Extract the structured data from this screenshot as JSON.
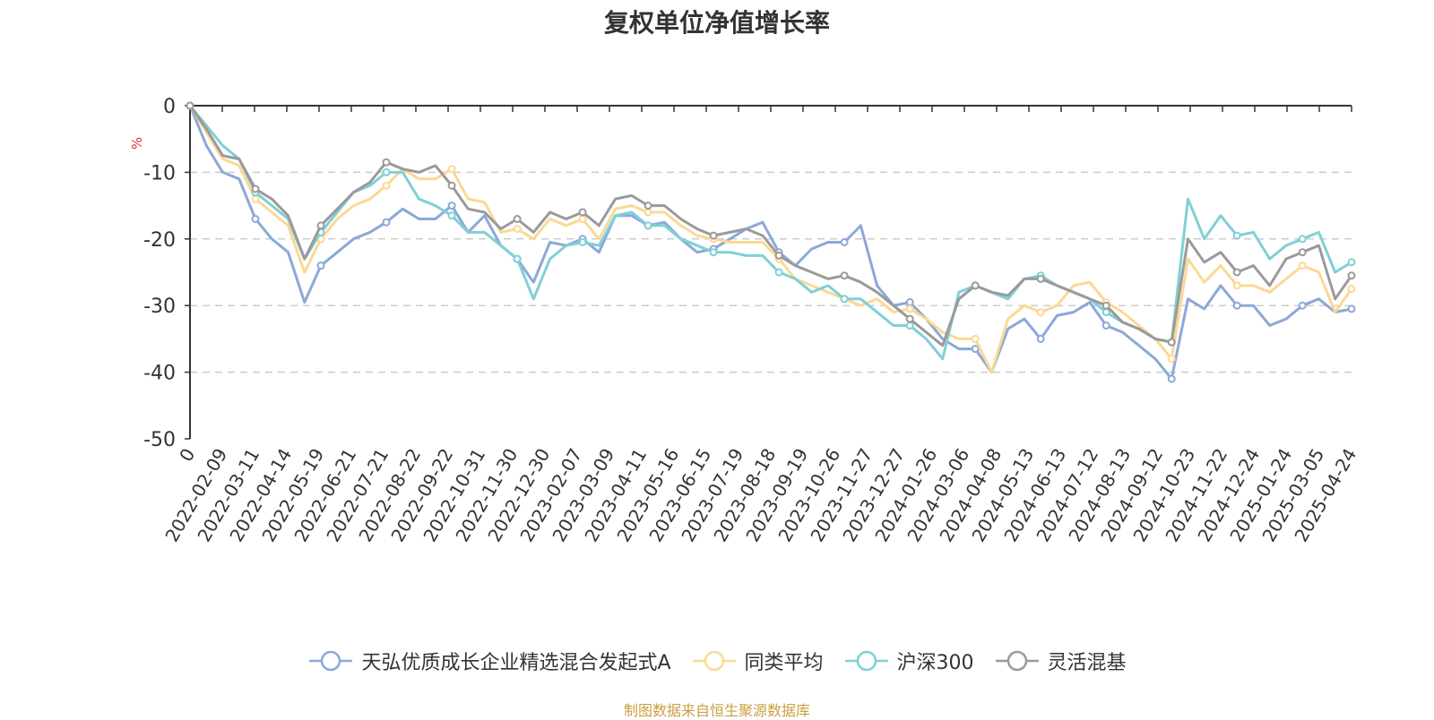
{
  "chart_data": {
    "type": "line",
    "title": "复权单位净值增长率",
    "ylabel": "%",
    "ylim": [
      -50,
      0
    ],
    "yticks": [
      "0",
      "-10",
      "-20",
      "-30",
      "-40",
      "-50"
    ],
    "grid": true,
    "legend_position": "bottom",
    "x_tick_labels": [
      "0",
      "2022-02-09",
      "2022-03-11",
      "2022-04-14",
      "2022-05-19",
      "2022-06-21",
      "2022-07-21",
      "2022-08-22",
      "2022-09-22",
      "2022-10-31",
      "2022-11-30",
      "2022-12-30",
      "2023-02-07",
      "2023-03-09",
      "2023-04-11",
      "2023-05-16",
      "2023-06-15",
      "2023-07-19",
      "2023-08-18",
      "2023-09-19",
      "2023-10-26",
      "2023-11-27",
      "2023-12-27",
      "2024-01-26",
      "2024-03-06",
      "2024-04-08",
      "2024-05-13",
      "2024-06-13",
      "2024-07-12",
      "2024-08-13",
      "2024-09-12",
      "2024-10-23",
      "2024-11-22",
      "2024-12-24",
      "2025-01-24",
      "2025-03-05",
      "2025-04-24"
    ],
    "series": [
      {
        "name": "天弘优质成长企业精选混合发起式A",
        "color": "#8ba8d8",
        "values": [
          0,
          -6,
          -10,
          -11,
          -17,
          -20,
          -22,
          -29.5,
          -24,
          -22,
          -20,
          -19,
          -17.5,
          -15.5,
          -17,
          -17,
          -15,
          -19,
          -16.5,
          -21,
          -23,
          -26.5,
          -20.5,
          -21,
          -20,
          -22,
          -16.5,
          -16.5,
          -18,
          -17.5,
          -20,
          -22,
          -21.5,
          -20,
          -18.5,
          -17.5,
          -22,
          -24,
          -21.5,
          -20.5,
          -20.5,
          -18,
          -27,
          -30,
          -29.5,
          -32,
          -35,
          -36.5,
          -36.5,
          -40,
          -33.5,
          -32,
          -35,
          -31.5,
          -31,
          -29.5,
          -33,
          -34,
          -36,
          -38,
          -41,
          -29,
          -30.5,
          -27,
          -30,
          -30,
          -33,
          -32,
          -30,
          -29,
          -31,
          -30.5
        ]
      },
      {
        "name": "同类平均",
        "color": "#fcd893",
        "values": [
          0,
          -4,
          -8,
          -9,
          -14,
          -16,
          -18,
          -25,
          -20,
          -17,
          -15,
          -14,
          -12,
          -9.5,
          -11,
          -11,
          -9.5,
          -14,
          -14.5,
          -19,
          -18.5,
          -20,
          -17,
          -18,
          -17,
          -20,
          -15.5,
          -15,
          -16,
          -16,
          -18,
          -19.5,
          -20,
          -20.5,
          -20.5,
          -20.5,
          -23,
          -26,
          -27,
          -28,
          -29,
          -30,
          -29,
          -31,
          -30.5,
          -32,
          -34,
          -35,
          -35,
          -40,
          -32,
          -30,
          -31,
          -30,
          -27,
          -26.5,
          -29.5,
          -31,
          -33,
          -35,
          -38,
          -23,
          -26.5,
          -24,
          -27,
          -27,
          -28,
          -26,
          -24,
          -25,
          -31,
          -27.5
        ]
      },
      {
        "name": "沪深300",
        "color": "#7fd0d6",
        "values": [
          0,
          -3,
          -6,
          -8,
          -13,
          -15,
          -17,
          -23,
          -19,
          -16,
          -13,
          -12,
          -10,
          -10,
          -14,
          -15,
          -16.5,
          -19,
          -19,
          -21,
          -23,
          -29,
          -23,
          -21,
          -20.5,
          -21,
          -16.5,
          -16,
          -18,
          -18,
          -20,
          -21,
          -22,
          -22,
          -22.5,
          -22.5,
          -25,
          -26,
          -28,
          -27,
          -29,
          -29,
          -31,
          -33,
          -33,
          -35,
          -38,
          -28,
          -27,
          -28,
          -29,
          -26,
          -25.5,
          -27,
          -28,
          -29,
          -31,
          -32.5,
          -33.5,
          -35,
          -35.5,
          -14,
          -20,
          -16.5,
          -19.5,
          -19,
          -23,
          -21,
          -20,
          -19,
          -25,
          -23.5
        ]
      },
      {
        "name": "灵活混基",
        "color": "#9a9a9a",
        "values": [
          0,
          -3.5,
          -7.5,
          -8,
          -12.5,
          -14,
          -16.5,
          -23,
          -18,
          -15.5,
          -13,
          -11.5,
          -8.5,
          -9.5,
          -10,
          -9,
          -12,
          -15.5,
          -16,
          -18.5,
          -17,
          -19,
          -16,
          -17,
          -16,
          -18,
          -14,
          -13.5,
          -15,
          -15,
          -17,
          -18.5,
          -19.5,
          -19,
          -18.5,
          -19.5,
          -22.5,
          -24,
          -25,
          -26,
          -25.5,
          -26.5,
          -28,
          -30,
          -32,
          -34,
          -36,
          -29,
          -27,
          -28,
          -28.5,
          -26,
          -26,
          -27,
          -28,
          -29,
          -30,
          -32.5,
          -33.5,
          -35,
          -35.5,
          -20,
          -23.5,
          -22,
          -25,
          -24,
          -27,
          -23,
          -22,
          -21,
          -29,
          -25.5
        ]
      }
    ]
  },
  "legend": {
    "items": [
      "天弘优质成长企业精选混合发起式A",
      "同类平均",
      "沪深300",
      "灵活混基"
    ]
  },
  "footer": "制图数据来自恒生聚源数据库"
}
